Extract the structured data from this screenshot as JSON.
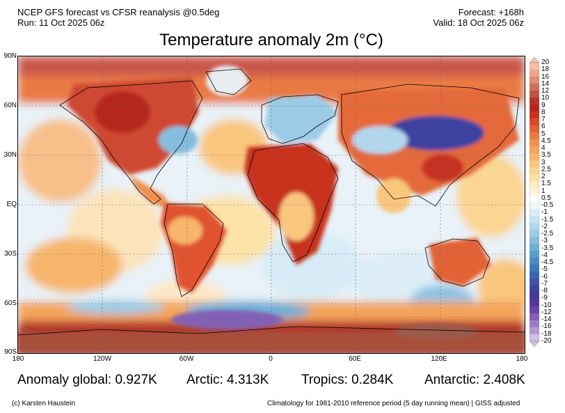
{
  "header": {
    "line1_left": "NCEP GFS forecast vs CFSR reanalysis @0.5deg",
    "line2_left": "Run: 11 Oct 2025 06z",
    "line1_right": "Forecast: +168h",
    "line2_right": "Valid: 18 Oct 2025 06z"
  },
  "title": "Temperature anomaly 2m (°C)",
  "lat_labels": [
    "90N",
    "60N",
    "30N",
    "EQ",
    "30S",
    "60S",
    "90S"
  ],
  "lon_labels": [
    "180",
    "120W",
    "60W",
    "0",
    "60E",
    "120E",
    "180"
  ],
  "colorbar": {
    "labels": [
      "20",
      "18",
      "16",
      "14",
      "12",
      "10",
      "9",
      "8",
      "7",
      "6",
      "5",
      "4.5",
      "4",
      "3.5",
      "3",
      "2.5",
      "2",
      "1.5",
      "1",
      "0.5",
      "-0.5",
      "-1",
      "-1.5",
      "-2",
      "-2.5",
      "-3",
      "-3.5",
      "-4",
      "-4.5",
      "-5",
      "-6",
      "-7",
      "-8",
      "-9",
      "-10",
      "-12",
      "-14",
      "-16",
      "-18",
      "-20"
    ],
    "colors": [
      "#f4c0a4",
      "#eaa88c",
      "#df8c74",
      "#cf705c",
      "#bf5444",
      "#b2362a",
      "#b5251e",
      "#c63120",
      "#d64a2a",
      "#e26236",
      "#ea7a44",
      "#f09050",
      "#f4a45c",
      "#f7b66c",
      "#f9c67e",
      "#fbd592",
      "#fce2a8",
      "#fdecc0",
      "#fdf4d8",
      "#ffffff",
      "#eef6fb",
      "#dcedf7",
      "#c8e3f2",
      "#b2d7ec",
      "#9ccbe6",
      "#86bddf",
      "#6eaed6",
      "#5a9dcc",
      "#4a8bc2",
      "#3e78b8",
      "#3a66ae",
      "#3c54a6",
      "#3e43a0",
      "#46389c",
      "#54379f",
      "#6a45a8",
      "#8260b4",
      "#9a7cc2",
      "#b59ad2",
      "#d0bfe4"
    ]
  },
  "stats": {
    "global": "Anomaly global: 0.927K",
    "arctic": "Arctic: 4.313K",
    "tropics": "Tropics: 0.284K",
    "antarctic": "Antarctic: 2.408K"
  },
  "footer": {
    "left": "(c) Karsten Haustein",
    "right": "Climatology for 1981-2010 reference period (5 day running mean) | GISS adjusted"
  }
}
